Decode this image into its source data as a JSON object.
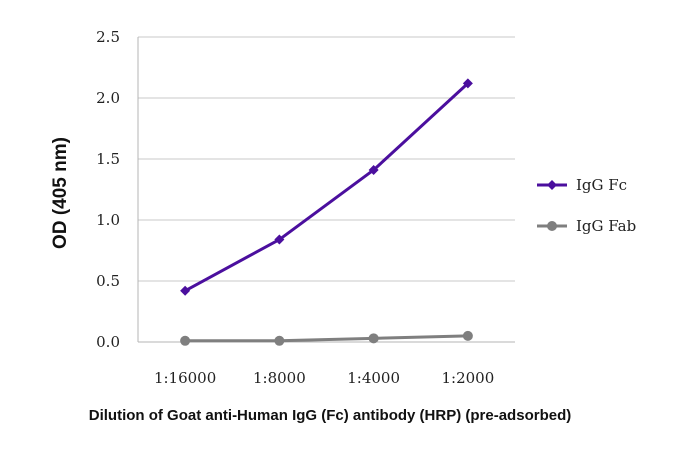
{
  "chart_data": {
    "type": "line",
    "title": "",
    "xlabel": "Dilution of Goat anti-Human IgG (Fc) antibody (HRP) (pre-adsorbed)",
    "ylabel": "OD (405 nm)",
    "categories": [
      "1:16000",
      "1:8000",
      "1:4000",
      "1:2000"
    ],
    "yticks": [
      "0.0",
      "0.5",
      "1.0",
      "1.5",
      "2.0",
      "2.5"
    ],
    "ylim": [
      0,
      2.5
    ],
    "grid": true,
    "legend_position": "right",
    "series": [
      {
        "name": "IgG Fc",
        "values": [
          0.42,
          0.84,
          1.41,
          2.12
        ],
        "color": "#4b0f9e",
        "marker": "diamond"
      },
      {
        "name": "IgG Fab",
        "values": [
          0.01,
          0.01,
          0.03,
          0.05
        ],
        "color": "#7f7f7f",
        "marker": "circle"
      }
    ]
  }
}
